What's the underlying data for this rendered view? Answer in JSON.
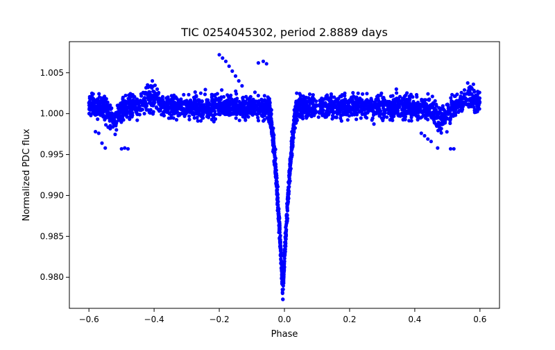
{
  "chart_data": {
    "type": "scatter",
    "title": "TIC 0254045302, period 2.8889 days",
    "xlabel": "Phase",
    "ylabel": "Normalized PDC flux",
    "xlim": [
      -0.66,
      0.66
    ],
    "ylim": [
      0.9762,
      1.0088
    ],
    "xticks": [
      -0.6,
      -0.4,
      -0.2,
      0.0,
      0.2,
      0.4,
      0.6
    ],
    "xtick_labels": [
      "−0.6",
      "−0.4",
      "−0.2",
      "0.0",
      "0.2",
      "0.4",
      "0.6"
    ],
    "yticks": [
      0.98,
      0.985,
      0.99,
      0.995,
      1.0,
      1.005
    ],
    "ytick_labels": [
      "0.980",
      "0.985",
      "0.990",
      "0.995",
      "1.000",
      "1.005"
    ],
    "grid": false,
    "point_color": "#0000ff",
    "phase_range": [
      -0.6,
      0.6
    ],
    "period_days": 2.8889,
    "transit": {
      "center": -0.005,
      "depth": 0.0225,
      "half_width": 0.045,
      "egress_phase": 0.03
    },
    "baseline_flux": 1.0008,
    "stray_points": [
      {
        "x": -0.2,
        "y": 1.0072
      },
      {
        "x": -0.19,
        "y": 1.0068
      },
      {
        "x": -0.18,
        "y": 1.0064
      },
      {
        "x": -0.17,
        "y": 1.0058
      },
      {
        "x": -0.16,
        "y": 1.0052
      },
      {
        "x": -0.15,
        "y": 1.0046
      },
      {
        "x": -0.14,
        "y": 1.004
      },
      {
        "x": -0.13,
        "y": 1.0034
      },
      {
        "x": -0.08,
        "y": 1.0062
      },
      {
        "x": -0.065,
        "y": 1.0064
      },
      {
        "x": -0.055,
        "y": 1.0061
      },
      {
        "x": -0.58,
        "y": 0.9978
      },
      {
        "x": -0.57,
        "y": 0.9976
      },
      {
        "x": -0.56,
        "y": 0.9964
      },
      {
        "x": -0.55,
        "y": 0.9958
      },
      {
        "x": -0.5,
        "y": 0.9957
      },
      {
        "x": -0.49,
        "y": 0.9958
      },
      {
        "x": -0.48,
        "y": 0.9957
      },
      {
        "x": 0.42,
        "y": 0.9976
      },
      {
        "x": 0.43,
        "y": 0.9973
      },
      {
        "x": 0.44,
        "y": 0.9969
      },
      {
        "x": 0.45,
        "y": 0.9966
      },
      {
        "x": 0.47,
        "y": 0.9958
      },
      {
        "x": 0.51,
        "y": 0.9957
      },
      {
        "x": 0.52,
        "y": 0.9957
      },
      {
        "x": -0.3,
        "y": 1.0016
      },
      {
        "x": -0.42,
        "y": 1.0035
      },
      {
        "x": -0.41,
        "y": 1.0034
      },
      {
        "x": 0.58,
        "y": 1.0036
      },
      {
        "x": 0.57,
        "y": 1.0033
      }
    ]
  }
}
